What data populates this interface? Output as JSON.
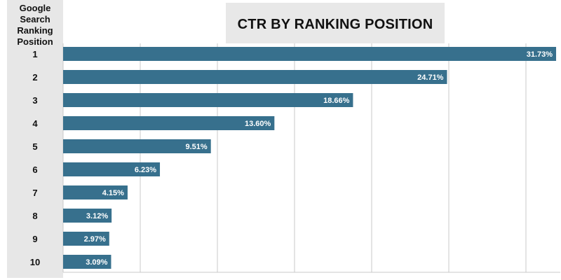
{
  "side_header": {
    "lines": [
      "Google",
      "Search",
      "Ranking",
      "Position"
    ]
  },
  "chart_data": {
    "type": "bar",
    "orientation": "horizontal",
    "title": "CTR BY RANKING POSITION",
    "categories": [
      "1",
      "2",
      "3",
      "4",
      "5",
      "6",
      "7",
      "8",
      "9",
      "10"
    ],
    "values": [
      31.73,
      24.71,
      18.66,
      13.6,
      9.51,
      6.23,
      4.15,
      3.12,
      2.97,
      3.09
    ],
    "value_labels": [
      "31.73%",
      "24.71%",
      "18.66%",
      "13.60%",
      "9.51%",
      "6.23%",
      "4.15%",
      "3.12%",
      "2.97%",
      "3.09%"
    ],
    "xlim": [
      0,
      32
    ],
    "grid": true,
    "bar_color": "#37708d",
    "label_color": "#ffffff"
  }
}
